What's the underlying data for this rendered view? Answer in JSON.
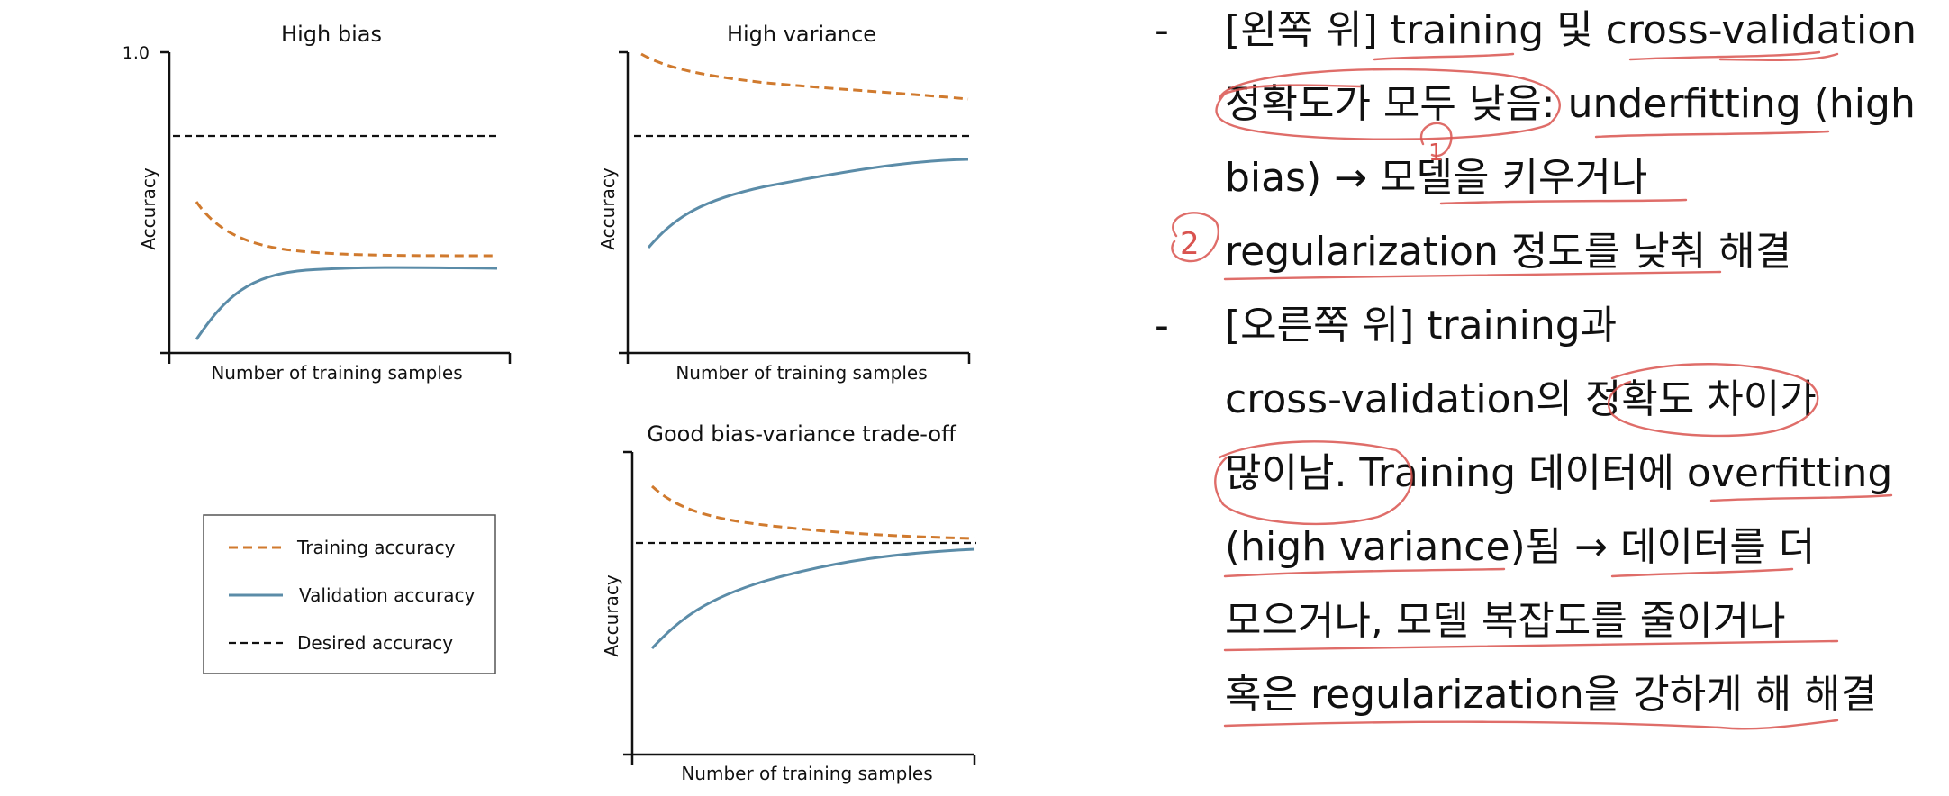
{
  "chart_data": [
    {
      "type": "line",
      "title": "High bias",
      "xlabel": "Number of training samples",
      "ylabel": "Accuracy",
      "ytick_label": "1.0",
      "ylim": [
        0,
        1.0
      ],
      "xlim": [
        0,
        100
      ],
      "desired": 0.72,
      "series": [
        {
          "name": "Training accuracy",
          "style": "dashed",
          "color": "#d07a2e",
          "x": [
            8,
            15,
            25,
            35,
            50,
            65,
            80,
            95
          ],
          "y": [
            0.5,
            0.43,
            0.37,
            0.35,
            0.33,
            0.33,
            0.33,
            0.33
          ]
        },
        {
          "name": "Validation accuracy",
          "style": "solid",
          "color": "#5b8ca8",
          "x": [
            8,
            15,
            25,
            35,
            50,
            65,
            80,
            95
          ],
          "y": [
            0.05,
            0.17,
            0.25,
            0.28,
            0.29,
            0.29,
            0.29,
            0.29
          ]
        }
      ]
    },
    {
      "type": "line",
      "title": "High variance",
      "xlabel": "Number of training samples",
      "ylabel": "Accuracy",
      "ylim": [
        0,
        1.0
      ],
      "xlim": [
        0,
        100
      ],
      "desired": 0.72,
      "series": [
        {
          "name": "Training accuracy",
          "style": "dashed",
          "color": "#d07a2e",
          "x": [
            5,
            15,
            30,
            50,
            70,
            95
          ],
          "y": [
            0.99,
            0.94,
            0.9,
            0.87,
            0.85,
            0.84
          ]
        },
        {
          "name": "Validation accuracy",
          "style": "solid",
          "color": "#5b8ca8",
          "x": [
            5,
            12,
            20,
            35,
            55,
            75,
            95
          ],
          "y": [
            0.36,
            0.46,
            0.52,
            0.56,
            0.6,
            0.64,
            0.68
          ]
        }
      ]
    },
    {
      "type": "line",
      "title": "Good bias-variance trade-off",
      "xlabel": "Number of training samples",
      "ylabel": "Accuracy",
      "ylim": [
        0,
        1.0
      ],
      "xlim": [
        0,
        100
      ],
      "desired": 0.72,
      "series": [
        {
          "name": "Training accuracy",
          "style": "dashed",
          "color": "#d07a2e",
          "x": [
            5,
            15,
            30,
            50,
            70,
            95
          ],
          "y": [
            0.9,
            0.82,
            0.78,
            0.76,
            0.75,
            0.74
          ]
        },
        {
          "name": "Validation accuracy",
          "style": "solid",
          "color": "#5b8ca8",
          "x": [
            5,
            12,
            22,
            35,
            55,
            75,
            95
          ],
          "y": [
            0.36,
            0.48,
            0.57,
            0.62,
            0.66,
            0.69,
            0.7
          ]
        }
      ]
    }
  ],
  "legend": {
    "training": "Training accuracy",
    "validation": "Validation accuracy",
    "desired": "Desired accuracy"
  },
  "notes": {
    "bullet_marker": "-",
    "bullet1_lines": [
      "[왼쪽 위] training 및 cross-validation",
      "정확도가 모두 낮음: underfitting (high",
      "bias) → 모델을 키우거나",
      "regularization 정도를 낮춰 해결"
    ],
    "bullet2_lines": [
      "[오른쪽 위] training과",
      "cross-validation의 정확도 차이가",
      "많이남. Training 데이터에 overfitting",
      "(high variance)됨 → 데이터를 더",
      "모으거나, 모델 복잡도를 줄이거나",
      "혹은 regularization을 강하게 해 해결"
    ],
    "ink_marks": [
      "1",
      "2"
    ],
    "ink_color": "#d9534f"
  }
}
